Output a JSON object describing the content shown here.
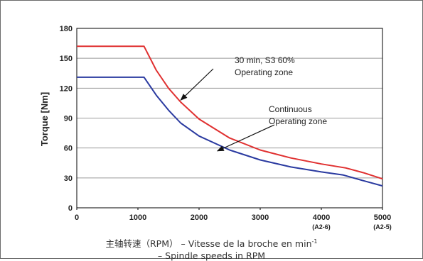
{
  "chart_data": {
    "type": "line",
    "ylabel": "Torque [Nm]",
    "xlabel_line1": "主轴转速（RPM） – Vitesse de la broche en min",
    "xlabel_line1_sup": "-1",
    "xlabel_line2": "– Spindle speeds in RPM",
    "xlim": [
      0,
      5000
    ],
    "ylim": [
      0,
      180
    ],
    "x_ticks": [
      0,
      1000,
      2000,
      3000,
      4000,
      5000
    ],
    "x_tick_labels": [
      "0",
      "1000",
      "2000",
      "3000",
      "4000",
      "5000"
    ],
    "x_tick_sublabels": [
      "",
      "",
      "",
      "",
      "(A2-6)",
      "(A2-5)"
    ],
    "y_ticks": [
      0,
      30,
      60,
      90,
      120,
      150,
      180
    ],
    "y_tick_labels": [
      "0",
      "30",
      "60",
      "90",
      "120",
      "150",
      "180"
    ],
    "grid": "horizontal",
    "legend": "none",
    "series": [
      {
        "color": "#e03030",
        "x": [
          0,
          1100,
          1300,
          1500,
          1700,
          2000,
          2500,
          3000,
          3500,
          4000,
          4400,
          4700,
          5000
        ],
        "values": [
          162,
          162,
          138,
          120,
          106,
          89,
          70,
          58,
          50,
          44,
          40,
          35,
          29
        ]
      },
      {
        "color": "#2a3aa0",
        "x": [
          0,
          1100,
          1300,
          1500,
          1700,
          2000,
          2500,
          3000,
          3500,
          4000,
          4350,
          4700,
          5000
        ],
        "values": [
          131,
          131,
          113,
          98,
          85,
          72,
          58,
          48,
          41,
          36,
          33,
          27,
          22
        ]
      }
    ],
    "annotations": [
      {
        "lines": [
          "30 min, S3 60%",
          "Operating zone"
        ],
        "pointer_x": 1700,
        "pointer_y": 108
      },
      {
        "lines": [
          "Continuous",
          "Operating zone"
        ],
        "pointer_x": 2300,
        "pointer_y": 57
      }
    ]
  }
}
